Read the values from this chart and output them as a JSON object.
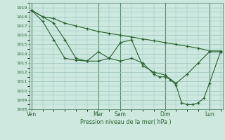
{
  "title": "Pression niveau de la mer( hPa )",
  "bg_color": "#cce8df",
  "grid_color": "#99c4bb",
  "line_color": "#2a6030",
  "vline_color": "#5a8a70",
  "ylim": [
    1008,
    1019.5
  ],
  "ytick_vals": [
    1008,
    1009,
    1010,
    1011,
    1012,
    1013,
    1014,
    1015,
    1016,
    1017,
    1018,
    1019
  ],
  "xlim": [
    -0.1,
    8.6
  ],
  "day_labels": [
    "Ven",
    "Mar",
    "Sam",
    "Dim",
    "Lun"
  ],
  "day_positions": [
    0.0,
    3.0,
    4.0,
    6.0,
    8.0
  ],
  "series1_x": [
    0.0,
    0.5,
    1.0,
    1.5,
    2.0,
    2.5,
    3.0,
    3.5,
    4.0,
    4.5,
    5.0,
    5.5,
    6.0,
    6.5,
    7.0,
    7.5,
    8.0,
    8.5
  ],
  "series1_y": [
    1018.7,
    1018.0,
    1017.8,
    1017.3,
    1017.0,
    1016.7,
    1016.4,
    1016.2,
    1016.0,
    1015.8,
    1015.6,
    1015.4,
    1015.2,
    1015.0,
    1014.8,
    1014.6,
    1014.3,
    1014.3
  ],
  "series2_x": [
    0.0,
    0.5,
    1.0,
    1.5,
    2.0,
    2.5,
    3.0,
    3.5,
    4.0,
    4.5,
    5.0,
    5.5,
    5.75,
    6.0,
    6.25,
    6.5,
    6.75,
    7.0,
    7.25,
    7.5,
    7.75,
    8.0,
    8.5
  ],
  "series2_y": [
    1018.7,
    1018.0,
    1017.3,
    1015.5,
    1013.5,
    1013.2,
    1013.2,
    1013.5,
    1013.2,
    1013.5,
    1013.0,
    1011.8,
    1011.5,
    1011.5,
    1011.2,
    1010.6,
    1008.7,
    1008.5,
    1008.5,
    1008.7,
    1009.2,
    1010.8,
    1014.2
  ],
  "series3_x": [
    0.0,
    0.5,
    1.0,
    1.5,
    2.0,
    2.5,
    3.0,
    3.5,
    4.0,
    4.5,
    5.0,
    5.5,
    6.0,
    6.5,
    7.0,
    7.5,
    8.0,
    8.5
  ],
  "series3_y": [
    1018.7,
    1017.5,
    1015.5,
    1013.5,
    1013.3,
    1013.2,
    1014.2,
    1013.5,
    1015.2,
    1015.5,
    1012.7,
    1012.0,
    1011.7,
    1010.8,
    1011.8,
    1013.0,
    1014.2,
    1014.2
  ]
}
